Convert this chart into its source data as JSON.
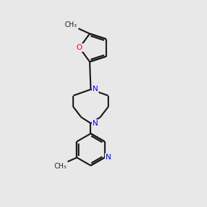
{
  "background_color": "#e8e8e8",
  "bond_color": "#1a1a1a",
  "nitrogen_color": "#0000ff",
  "oxygen_color": "#ff0000",
  "line_width": 1.6,
  "font_size_atom": 8.0,
  "fig_size": [
    3.0,
    3.0
  ],
  "dpi": 100,
  "xlim": [
    0,
    10
  ],
  "ylim": [
    0,
    10
  ]
}
